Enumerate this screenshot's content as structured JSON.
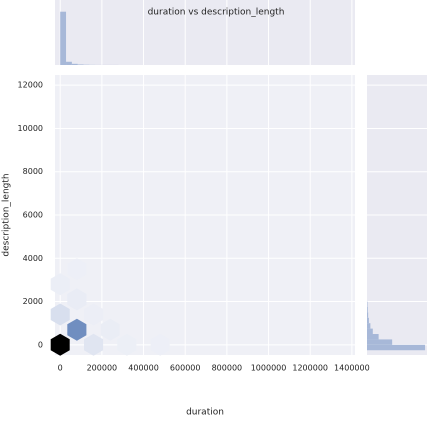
{
  "chart_data": {
    "type": "hexbin",
    "title": "duration vs description_length",
    "x_label": "duration",
    "y_label": "description_length",
    "xlim": [
      -25000,
      1415000
    ],
    "ylim": [
      -470,
      12470
    ],
    "xticks": [
      0,
      200000,
      400000,
      600000,
      800000,
      1000000,
      1200000,
      1400000
    ],
    "yticks": [
      0,
      2000,
      4000,
      6000,
      8000,
      10000,
      12000
    ],
    "grid": true,
    "cmap": [
      "#eef0f7",
      "#4c72b0",
      "#000000"
    ],
    "hexbins": [
      {
        "x": 0,
        "y": 0,
        "count": 900
      },
      {
        "x": 80000,
        "y": 700,
        "count": 350
      },
      {
        "x": 0,
        "y": 1400,
        "count": 60
      },
      {
        "x": 160000,
        "y": 0,
        "count": 40
      },
      {
        "x": 80000,
        "y": 2100,
        "count": 15
      },
      {
        "x": 0,
        "y": 2800,
        "count": 8
      },
      {
        "x": 240000,
        "y": 700,
        "count": 10
      },
      {
        "x": 320000,
        "y": 0,
        "count": 5
      },
      {
        "x": 160000,
        "y": 1400,
        "count": 6
      },
      {
        "x": 80000,
        "y": 3500,
        "count": 3
      },
      {
        "x": 480000,
        "y": 0,
        "count": 2
      }
    ],
    "x_hist": {
      "color": "#a7b8d8",
      "bins": [
        0,
        28000,
        56000,
        84000,
        112000,
        140000,
        168000,
        196000,
        224000,
        252000,
        280000
      ],
      "counts": [
        820,
        50,
        18,
        8,
        4,
        2,
        1,
        1,
        1,
        1
      ],
      "lim": [
        0,
        1000
      ]
    },
    "y_hist": {
      "color": "#a7b8d8",
      "bins": [
        -250,
        0,
        250,
        500,
        750,
        1000,
        1250,
        1500,
        1750,
        2000
      ],
      "counts": [
        600,
        260,
        120,
        60,
        35,
        20,
        12,
        8,
        5
      ],
      "lim": [
        0,
        620
      ]
    }
  }
}
